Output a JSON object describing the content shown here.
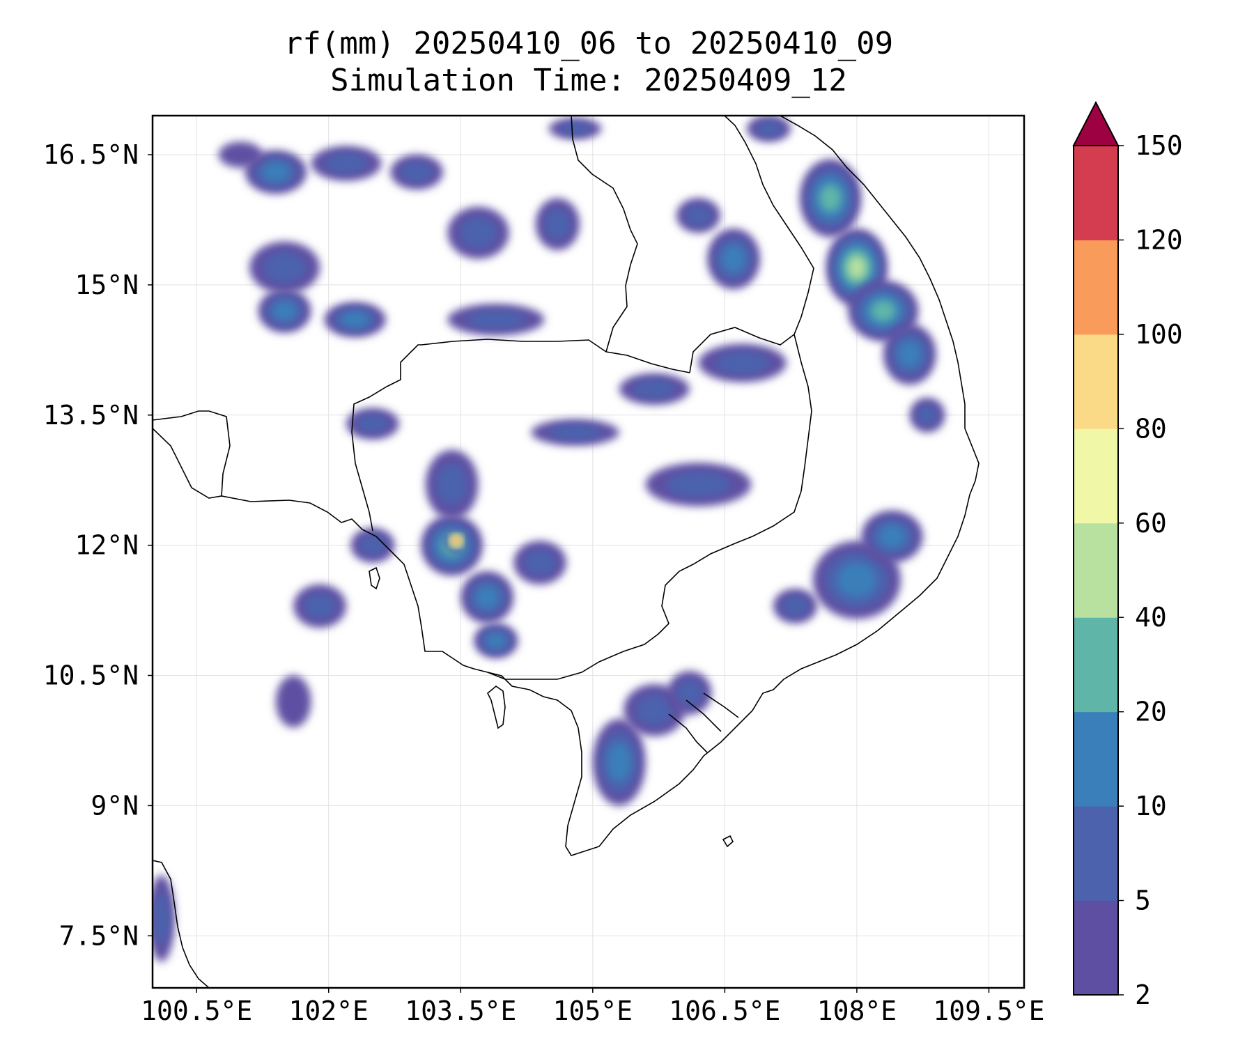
{
  "chart_data": {
    "type": "heatmap",
    "title": "rf(mm) 20250410_06 to 20250410_09",
    "subtitle": "Simulation Time: 20250409_12",
    "xlabel": "",
    "ylabel": "",
    "xlim": [
      100.0,
      109.9
    ],
    "ylim": [
      6.9,
      16.95
    ],
    "x_ticks": [
      {
        "value": 100.5,
        "label": "100.5°E"
      },
      {
        "value": 102.0,
        "label": "102°E"
      },
      {
        "value": 103.5,
        "label": "103.5°E"
      },
      {
        "value": 105.0,
        "label": "105°E"
      },
      {
        "value": 106.5,
        "label": "106.5°E"
      },
      {
        "value": 108.0,
        "label": "108°E"
      },
      {
        "value": 109.5,
        "label": "109.5°E"
      }
    ],
    "y_ticks": [
      {
        "value": 16.5,
        "label": "16.5°N"
      },
      {
        "value": 15.0,
        "label": "15°N"
      },
      {
        "value": 13.5,
        "label": "13.5°N"
      },
      {
        "value": 12.0,
        "label": "12°N"
      },
      {
        "value": 10.5,
        "label": "10.5°N"
      },
      {
        "value": 9.0,
        "label": "9°N"
      },
      {
        "value": 7.5,
        "label": "7.5°N"
      }
    ],
    "grid": true,
    "colorbar": {
      "levels": [
        2,
        5,
        10,
        20,
        40,
        60,
        80,
        100,
        120,
        150
      ],
      "labels": [
        "2",
        "5",
        "10",
        "20",
        "40",
        "60",
        "80",
        "100",
        "120",
        "150"
      ],
      "colors": [
        "#5e4fa2",
        "#4c62ad",
        "#3a7fb9",
        "#5fb6a8",
        "#b8e09f",
        "#f0f8a8",
        "#fbda87",
        "#f99b5b",
        "#d43d4f",
        "#9e0142"
      ],
      "extend": "max"
    },
    "rain_cells": [
      {
        "lon": 101.4,
        "lat": 16.3,
        "rx": 0.35,
        "ry": 0.25,
        "value": 12
      },
      {
        "lon": 101.0,
        "lat": 16.5,
        "rx": 0.25,
        "ry": 0.15,
        "value": 4
      },
      {
        "lon": 102.2,
        "lat": 16.4,
        "rx": 0.4,
        "ry": 0.2,
        "value": 6
      },
      {
        "lon": 103.0,
        "lat": 16.3,
        "rx": 0.3,
        "ry": 0.2,
        "value": 5
      },
      {
        "lon": 104.8,
        "lat": 16.8,
        "rx": 0.3,
        "ry": 0.12,
        "value": 5
      },
      {
        "lon": 103.7,
        "lat": 15.6,
        "rx": 0.35,
        "ry": 0.3,
        "value": 7
      },
      {
        "lon": 104.6,
        "lat": 15.7,
        "rx": 0.25,
        "ry": 0.3,
        "value": 6
      },
      {
        "lon": 101.5,
        "lat": 15.2,
        "rx": 0.4,
        "ry": 0.3,
        "value": 6
      },
      {
        "lon": 101.5,
        "lat": 14.7,
        "rx": 0.3,
        "ry": 0.25,
        "value": 10
      },
      {
        "lon": 102.3,
        "lat": 14.6,
        "rx": 0.35,
        "ry": 0.2,
        "value": 10
      },
      {
        "lon": 103.9,
        "lat": 14.6,
        "rx": 0.55,
        "ry": 0.18,
        "value": 7
      },
      {
        "lon": 106.2,
        "lat": 15.8,
        "rx": 0.25,
        "ry": 0.2,
        "value": 5
      },
      {
        "lon": 106.6,
        "lat": 15.3,
        "rx": 0.3,
        "ry": 0.35,
        "value": 12
      },
      {
        "lon": 107.0,
        "lat": 16.8,
        "rx": 0.25,
        "ry": 0.15,
        "value": 6
      },
      {
        "lon": 107.7,
        "lat": 16.0,
        "rx": 0.35,
        "ry": 0.45,
        "value": 30
      },
      {
        "lon": 108.0,
        "lat": 15.2,
        "rx": 0.35,
        "ry": 0.45,
        "value": 50
      },
      {
        "lon": 108.3,
        "lat": 14.7,
        "rx": 0.4,
        "ry": 0.35,
        "value": 28
      },
      {
        "lon": 108.6,
        "lat": 14.2,
        "rx": 0.3,
        "ry": 0.35,
        "value": 12
      },
      {
        "lon": 108.8,
        "lat": 13.5,
        "rx": 0.2,
        "ry": 0.2,
        "value": 6
      },
      {
        "lon": 106.7,
        "lat": 14.1,
        "rx": 0.5,
        "ry": 0.22,
        "value": 6
      },
      {
        "lon": 105.7,
        "lat": 13.8,
        "rx": 0.4,
        "ry": 0.18,
        "value": 5
      },
      {
        "lon": 104.8,
        "lat": 13.3,
        "rx": 0.5,
        "ry": 0.15,
        "value": 5
      },
      {
        "lon": 106.2,
        "lat": 12.7,
        "rx": 0.6,
        "ry": 0.25,
        "value": 6
      },
      {
        "lon": 102.5,
        "lat": 13.4,
        "rx": 0.3,
        "ry": 0.18,
        "value": 5
      },
      {
        "lon": 103.4,
        "lat": 12.7,
        "rx": 0.3,
        "ry": 0.4,
        "value": 8
      },
      {
        "lon": 103.4,
        "lat": 12.0,
        "rx": 0.35,
        "ry": 0.35,
        "value": 35
      },
      {
        "lon": 103.45,
        "lat": 12.05,
        "rx": 0.12,
        "ry": 0.12,
        "value": 100
      },
      {
        "lon": 103.8,
        "lat": 11.4,
        "rx": 0.3,
        "ry": 0.3,
        "value": 18
      },
      {
        "lon": 103.9,
        "lat": 10.9,
        "rx": 0.25,
        "ry": 0.2,
        "value": 15
      },
      {
        "lon": 104.4,
        "lat": 11.8,
        "rx": 0.3,
        "ry": 0.25,
        "value": 6
      },
      {
        "lon": 102.5,
        "lat": 12.0,
        "rx": 0.25,
        "ry": 0.2,
        "value": 6
      },
      {
        "lon": 101.9,
        "lat": 11.3,
        "rx": 0.3,
        "ry": 0.25,
        "value": 5
      },
      {
        "lon": 101.6,
        "lat": 10.2,
        "rx": 0.2,
        "ry": 0.3,
        "value": 4
      },
      {
        "lon": 108.0,
        "lat": 11.6,
        "rx": 0.5,
        "ry": 0.45,
        "value": 15
      },
      {
        "lon": 108.4,
        "lat": 12.1,
        "rx": 0.35,
        "ry": 0.3,
        "value": 10
      },
      {
        "lon": 107.3,
        "lat": 11.3,
        "rx": 0.25,
        "ry": 0.2,
        "value": 5
      },
      {
        "lon": 105.3,
        "lat": 9.5,
        "rx": 0.3,
        "ry": 0.5,
        "value": 12
      },
      {
        "lon": 105.7,
        "lat": 10.1,
        "rx": 0.35,
        "ry": 0.3,
        "value": 8
      },
      {
        "lon": 106.1,
        "lat": 10.3,
        "rx": 0.25,
        "ry": 0.25,
        "value": 6
      },
      {
        "lon": 100.1,
        "lat": 7.7,
        "rx": 0.15,
        "ry": 0.5,
        "value": 8
      }
    ]
  }
}
